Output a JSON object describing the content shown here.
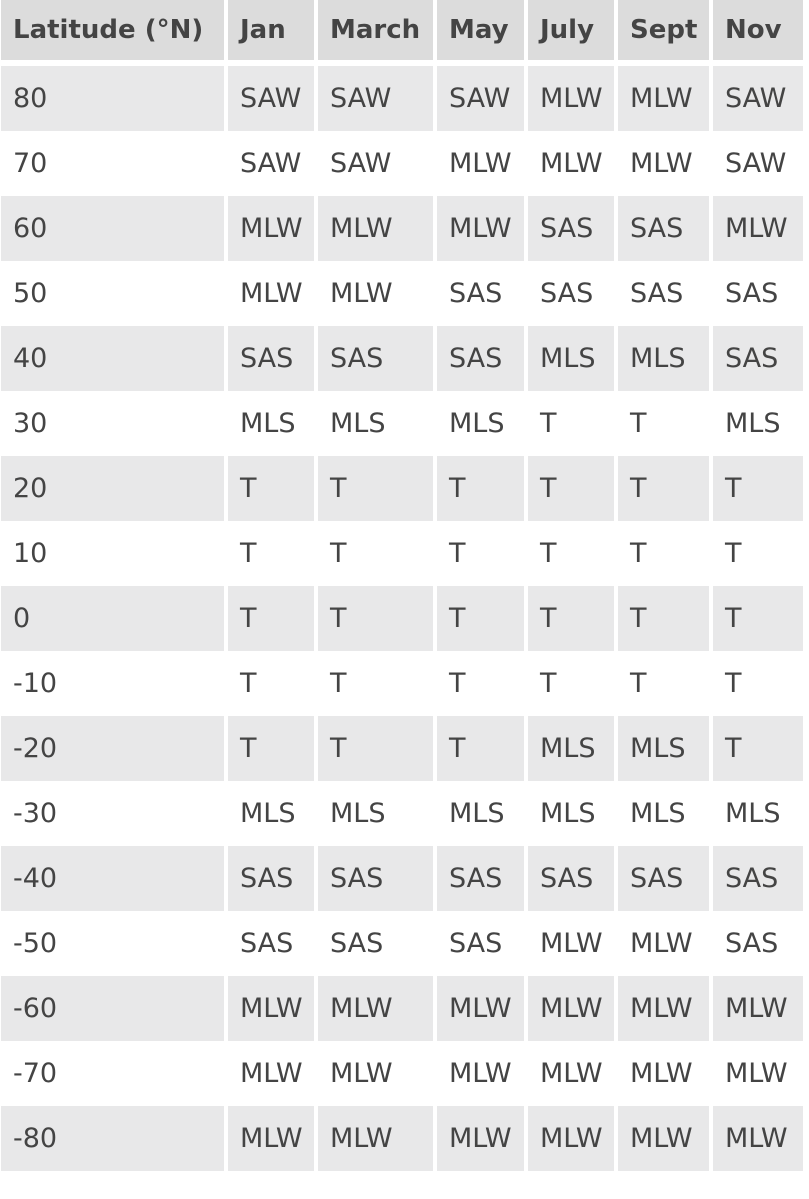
{
  "table": {
    "headers": [
      "Latitude (°N)",
      "Jan",
      "March",
      "May",
      "July",
      "Sept",
      "Nov"
    ],
    "rows": [
      [
        "80",
        "SAW",
        "SAW",
        "SAW",
        "MLW",
        "MLW",
        "SAW"
      ],
      [
        "70",
        "SAW",
        "SAW",
        "MLW",
        "MLW",
        "MLW",
        "SAW"
      ],
      [
        "60",
        "MLW",
        "MLW",
        "MLW",
        "SAS",
        "SAS",
        "MLW"
      ],
      [
        "50",
        "MLW",
        "MLW",
        "SAS",
        "SAS",
        "SAS",
        "SAS"
      ],
      [
        "40",
        "SAS",
        "SAS",
        "SAS",
        "MLS",
        "MLS",
        "SAS"
      ],
      [
        "30",
        "MLS",
        "MLS",
        "MLS",
        "T",
        "T",
        "MLS"
      ],
      [
        "20",
        "T",
        "T",
        "T",
        "T",
        "T",
        "T"
      ],
      [
        "10",
        "T",
        "T",
        "T",
        "T",
        "T",
        "T"
      ],
      [
        "0",
        "T",
        "T",
        "T",
        "T",
        "T",
        "T"
      ],
      [
        "-10",
        "T",
        "T",
        "T",
        "T",
        "T",
        "T"
      ],
      [
        "-20",
        "T",
        "T",
        "T",
        "MLS",
        "MLS",
        "T"
      ],
      [
        "-30",
        "MLS",
        "MLS",
        "MLS",
        "MLS",
        "MLS",
        "MLS"
      ],
      [
        "-40",
        "SAS",
        "SAS",
        "SAS",
        "SAS",
        "SAS",
        "SAS"
      ],
      [
        "-50",
        "SAS",
        "SAS",
        "SAS",
        "MLW",
        "MLW",
        "SAS"
      ],
      [
        "-60",
        "MLW",
        "MLW",
        "MLW",
        "MLW",
        "MLW",
        "MLW"
      ],
      [
        "-70",
        "MLW",
        "MLW",
        "MLW",
        "MLW",
        "MLW",
        "MLW"
      ],
      [
        "-80",
        "MLW",
        "MLW",
        "MLW",
        "MLW",
        "MLW",
        "MLW"
      ]
    ]
  },
  "colors": {
    "header_bg": "#dcdcdc",
    "stripe_bg": "#e8e8e9",
    "text": "#444444"
  }
}
